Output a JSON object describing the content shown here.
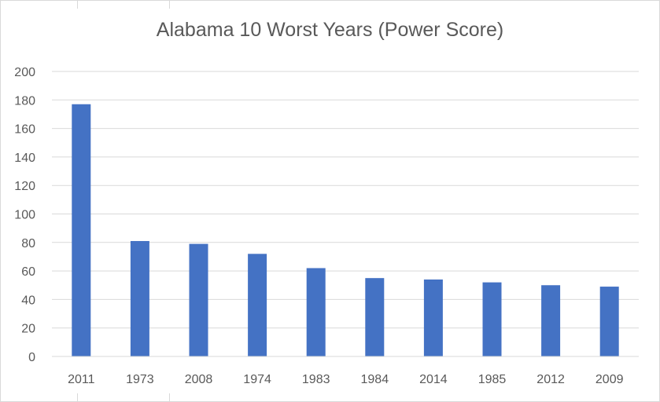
{
  "chart_data": {
    "type": "bar",
    "title": "Alabama 10 Worst Years (Power Score)",
    "categories": [
      "2011",
      "1973",
      "2008",
      "1974",
      "1983",
      "1984",
      "2014",
      "1985",
      "2012",
      "2009"
    ],
    "series": [
      {
        "values": [
          177,
          81,
          79,
          72,
          62,
          55,
          54,
          52,
          50,
          49
        ]
      }
    ],
    "ylim": [
      0,
      200
    ],
    "yticks": [
      "0",
      "20",
      "40",
      "60",
      "80",
      "100",
      "120",
      "140",
      "160",
      "180",
      "200"
    ],
    "xlabel": "",
    "ylabel": "",
    "grid": true,
    "legend": "none",
    "bar_color": "#4472c4",
    "grid_color": "#d9d9d9",
    "text_color": "#595959"
  }
}
